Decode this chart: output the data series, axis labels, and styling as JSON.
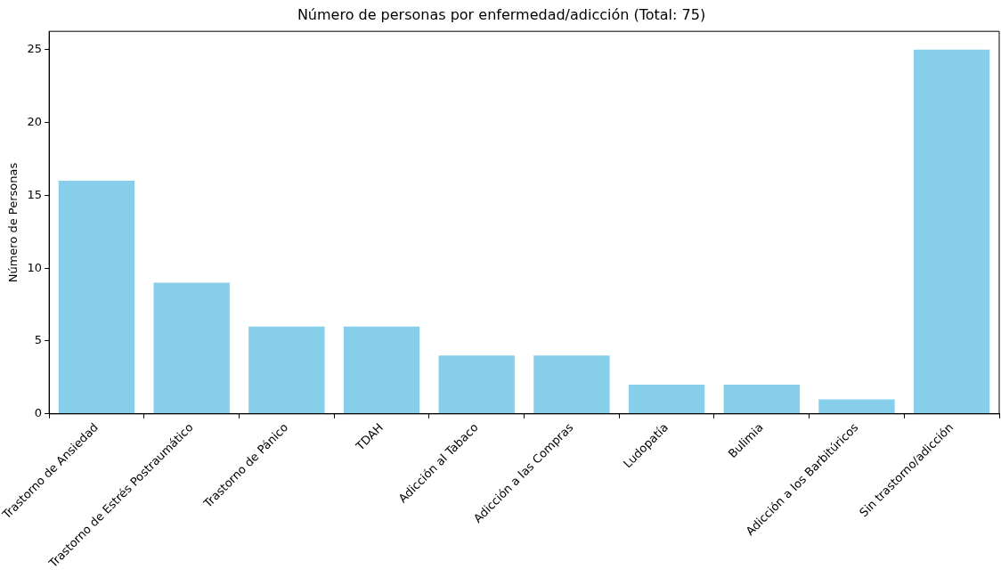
{
  "chart_data": {
    "type": "bar",
    "title": "Número de personas por enfermedad/adicción (Total: 75)",
    "ylabel": "Número de Personas",
    "categories": [
      "Trastorno de Ansiedad",
      "Trastorno de Estrés Postraumático",
      "Trastorno de Pánico",
      "TDAH",
      "Adicción al Tabaco",
      "Adicción a las Compras",
      "Ludopatía",
      "Bulimia",
      "Adicción a los Barbitúricos",
      "Sin trastorno/adicción"
    ],
    "values": [
      16,
      9,
      6,
      6,
      4,
      4,
      2,
      2,
      1,
      25
    ],
    "color": "#87ceeb",
    "ylim": [
      0,
      26.25
    ],
    "yticks": [
      0,
      5,
      10,
      15,
      20,
      25
    ],
    "grid": false,
    "legend": false
  }
}
